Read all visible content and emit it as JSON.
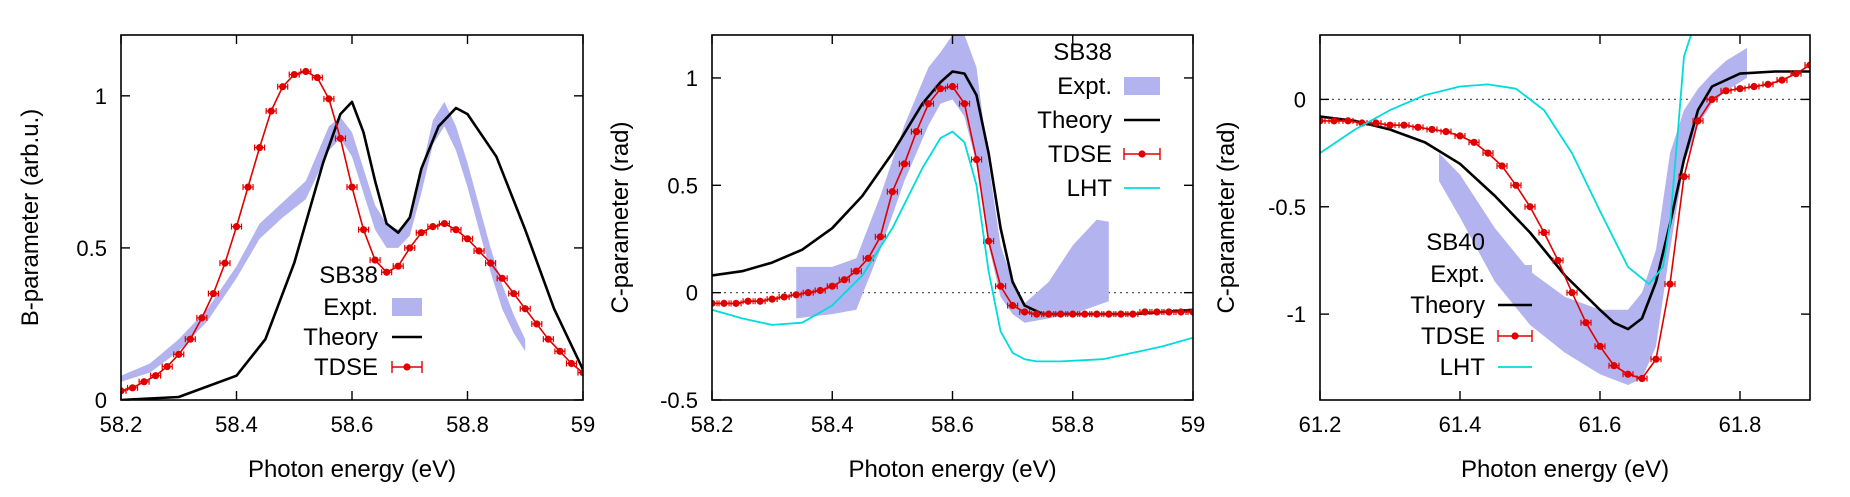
{
  "figure": {
    "panels": [
      {
        "id": "b-sb38",
        "xlabel": "Photon energy  (eV)",
        "ylabel": "B-parameter (arb.u.)",
        "xlim": [
          58.2,
          59.0
        ],
        "ylim": [
          0,
          1.2
        ],
        "xticks": [
          58.2,
          58.4,
          58.6,
          58.8,
          59.0
        ],
        "xtick_labels": [
          "58.2",
          "58.4",
          "58.6",
          "58.8",
          "59"
        ],
        "yticks": [
          0,
          0.5,
          1
        ],
        "ytick_labels": [
          "0",
          "0.5",
          "1"
        ],
        "zero_line": false,
        "legend": {
          "title": "SB38",
          "placement": "center",
          "entries": [
            "Expt.",
            "Theory",
            "TDSE"
          ]
        }
      },
      {
        "id": "c-sb38",
        "xlabel": "Photon energy  (eV)",
        "ylabel": "C-parameter (rad)",
        "xlim": [
          58.2,
          59.0
        ],
        "ylim": [
          -0.5,
          1.2
        ],
        "xticks": [
          58.2,
          58.4,
          58.6,
          58.8,
          59.0
        ],
        "xtick_labels": [
          "58.2",
          "58.4",
          "58.6",
          "58.8",
          "59"
        ],
        "yticks": [
          -0.5,
          0,
          0.5,
          1
        ],
        "ytick_labels": [
          "-0.5",
          "0",
          "0.5",
          "1"
        ],
        "zero_line": true,
        "legend": {
          "title": "SB38",
          "placement": "top-right",
          "entries": [
            "Expt.",
            "Theory",
            "TDSE",
            "LHT"
          ]
        }
      },
      {
        "id": "c-sb40",
        "xlabel": "Photon energy  (eV)",
        "ylabel": "C-parameter (rad)",
        "xlim": [
          61.2,
          61.9
        ],
        "ylim": [
          -1.4,
          0.3
        ],
        "xticks": [
          61.2,
          61.4,
          61.6,
          61.8
        ],
        "xtick_labels": [
          "61.2",
          "61.4",
          "61.6",
          "61.8"
        ],
        "yticks": [
          -1,
          -0.5,
          0
        ],
        "ytick_labels": [
          "-1",
          "-0.5",
          "0"
        ],
        "zero_line": true,
        "legend": {
          "title": "SB40",
          "placement": "bottom-left",
          "entries": [
            "Expt.",
            "Theory",
            "TDSE",
            "LHT"
          ]
        }
      }
    ]
  },
  "chart_data": [
    {
      "type": "line",
      "xlabel": "Photon energy  (eV)",
      "ylabel": "B-parameter (arb.u.)",
      "xlim": [
        58.2,
        59.0
      ],
      "ylim": [
        0,
        1.2
      ],
      "grid": false,
      "legend_placement": "center",
      "series": [
        {
          "name": "Expt.",
          "kind": "band",
          "color": "#b3b3f0",
          "x": [
            58.2,
            58.25,
            58.3,
            58.35,
            58.4,
            58.44,
            58.48,
            58.52,
            58.56,
            58.58,
            58.6,
            58.62,
            58.64,
            58.66,
            58.68,
            58.7,
            58.72,
            58.74,
            58.76,
            58.78,
            58.8,
            58.82,
            58.84,
            58.86,
            58.88,
            58.9
          ],
          "upper": [
            0.08,
            0.12,
            0.2,
            0.3,
            0.44,
            0.58,
            0.65,
            0.72,
            0.9,
            0.93,
            0.88,
            0.76,
            0.64,
            0.58,
            0.56,
            0.6,
            0.75,
            0.92,
            0.98,
            0.9,
            0.78,
            0.64,
            0.5,
            0.38,
            0.28,
            0.2
          ],
          "lower": [
            0.06,
            0.09,
            0.16,
            0.26,
            0.4,
            0.53,
            0.6,
            0.66,
            0.82,
            0.86,
            0.8,
            0.68,
            0.56,
            0.5,
            0.5,
            0.54,
            0.68,
            0.84,
            0.9,
            0.82,
            0.7,
            0.56,
            0.42,
            0.3,
            0.22,
            0.16
          ]
        },
        {
          "name": "Theory",
          "kind": "line",
          "color": "#000000",
          "x": [
            58.2,
            58.3,
            58.4,
            58.45,
            58.5,
            58.55,
            58.58,
            58.6,
            58.62,
            58.64,
            58.66,
            58.68,
            58.7,
            58.72,
            58.75,
            58.78,
            58.8,
            58.85,
            58.9,
            58.95,
            59.0
          ],
          "y": [
            0.0,
            0.01,
            0.08,
            0.2,
            0.45,
            0.78,
            0.94,
            0.98,
            0.88,
            0.72,
            0.58,
            0.55,
            0.6,
            0.76,
            0.9,
            0.96,
            0.94,
            0.8,
            0.56,
            0.3,
            0.1
          ]
        },
        {
          "name": "TDSE",
          "kind": "points-line",
          "color": "#e00000",
          "x": [
            58.2,
            58.22,
            58.24,
            58.26,
            58.28,
            58.3,
            58.32,
            58.34,
            58.36,
            58.38,
            58.4,
            58.42,
            58.44,
            58.46,
            58.48,
            58.5,
            58.52,
            58.54,
            58.56,
            58.58,
            58.6,
            58.62,
            58.64,
            58.66,
            58.68,
            58.7,
            58.72,
            58.74,
            58.76,
            58.78,
            58.8,
            58.82,
            58.84,
            58.86,
            58.88,
            58.9,
            58.92,
            58.94,
            58.96,
            58.98,
            59.0
          ],
          "y": [
            0.03,
            0.04,
            0.06,
            0.08,
            0.11,
            0.15,
            0.2,
            0.27,
            0.35,
            0.45,
            0.57,
            0.7,
            0.83,
            0.95,
            1.03,
            1.07,
            1.08,
            1.06,
            0.99,
            0.86,
            0.7,
            0.56,
            0.46,
            0.42,
            0.44,
            0.5,
            0.55,
            0.57,
            0.58,
            0.56,
            0.53,
            0.49,
            0.45,
            0.4,
            0.35,
            0.3,
            0.25,
            0.2,
            0.16,
            0.12,
            0.09
          ]
        }
      ]
    },
    {
      "type": "line",
      "xlabel": "Photon energy  (eV)",
      "ylabel": "C-parameter (rad)",
      "xlim": [
        58.2,
        59.0
      ],
      "ylim": [
        -0.5,
        1.2
      ],
      "grid": false,
      "legend_placement": "top-right",
      "series": [
        {
          "name": "Expt.",
          "kind": "band",
          "color": "#b3b3f0",
          "x": [
            58.34,
            58.4,
            58.44,
            58.48,
            58.52,
            58.56,
            58.58,
            58.6,
            58.62,
            58.64,
            58.66,
            58.68,
            58.7,
            58.72,
            58.76,
            58.8,
            58.84,
            58.86
          ],
          "upper": [
            0.12,
            0.12,
            0.16,
            0.45,
            0.78,
            1.05,
            1.12,
            1.2,
            1.2,
            1.05,
            0.6,
            0.22,
            0.05,
            -0.05,
            0.05,
            0.22,
            0.34,
            0.33
          ],
          "lower": [
            -0.12,
            -0.1,
            -0.08,
            0.2,
            0.52,
            0.78,
            0.88,
            0.9,
            0.82,
            0.6,
            0.22,
            -0.02,
            -0.1,
            -0.14,
            -0.12,
            -0.1,
            -0.06,
            -0.04
          ]
        },
        {
          "name": "Theory",
          "kind": "line",
          "color": "#000000",
          "x": [
            58.2,
            58.25,
            58.3,
            58.35,
            58.4,
            58.45,
            58.5,
            58.55,
            58.58,
            58.6,
            58.62,
            58.64,
            58.66,
            58.68,
            58.7,
            58.72,
            58.75,
            58.8,
            58.85,
            58.9,
            58.95,
            59.0
          ],
          "y": [
            0.08,
            0.1,
            0.14,
            0.2,
            0.3,
            0.45,
            0.65,
            0.88,
            0.98,
            1.03,
            1.02,
            0.92,
            0.65,
            0.3,
            0.05,
            -0.06,
            -0.1,
            -0.1,
            -0.1,
            -0.1,
            -0.09,
            -0.08
          ]
        },
        {
          "name": "TDSE",
          "kind": "points-line",
          "color": "#e00000",
          "x": [
            58.2,
            58.22,
            58.24,
            58.26,
            58.28,
            58.3,
            58.32,
            58.34,
            58.36,
            58.38,
            58.4,
            58.42,
            58.44,
            58.46,
            58.48,
            58.5,
            58.52,
            58.54,
            58.56,
            58.58,
            58.6,
            58.62,
            58.64,
            58.66,
            58.68,
            58.7,
            58.72,
            58.74,
            58.76,
            58.78,
            58.8,
            58.82,
            58.84,
            58.86,
            58.88,
            58.9,
            58.92,
            58.94,
            58.96,
            58.98,
            59.0
          ],
          "y": [
            -0.05,
            -0.05,
            -0.05,
            -0.04,
            -0.04,
            -0.03,
            -0.02,
            -0.01,
            0.0,
            0.01,
            0.03,
            0.06,
            0.1,
            0.16,
            0.26,
            0.47,
            0.6,
            0.75,
            0.88,
            0.95,
            0.96,
            0.88,
            0.62,
            0.24,
            0.03,
            -0.06,
            -0.09,
            -0.1,
            -0.1,
            -0.1,
            -0.1,
            -0.1,
            -0.1,
            -0.1,
            -0.1,
            -0.1,
            -0.09,
            -0.09,
            -0.09,
            -0.09,
            -0.09
          ]
        },
        {
          "name": "LHT",
          "kind": "line",
          "color": "#00dcdc",
          "x": [
            58.2,
            58.25,
            58.3,
            58.35,
            58.4,
            58.45,
            58.5,
            58.55,
            58.58,
            58.6,
            58.62,
            58.64,
            58.66,
            58.68,
            58.7,
            58.72,
            58.74,
            58.78,
            58.85,
            58.9,
            58.95,
            59.0
          ],
          "y": [
            -0.08,
            -0.12,
            -0.15,
            -0.14,
            -0.06,
            0.08,
            0.3,
            0.58,
            0.72,
            0.75,
            0.7,
            0.5,
            0.1,
            -0.18,
            -0.28,
            -0.31,
            -0.32,
            -0.32,
            -0.31,
            -0.28,
            -0.25,
            -0.21
          ]
        }
      ]
    },
    {
      "type": "line",
      "xlabel": "Photon energy  (eV)",
      "ylabel": "C-parameter (rad)",
      "xlim": [
        61.2,
        61.9
      ],
      "ylim": [
        -1.4,
        0.3
      ],
      "grid": false,
      "legend_placement": "bottom-left",
      "series": [
        {
          "name": "Expt.",
          "kind": "band",
          "color": "#b3b3f0",
          "x": [
            61.37,
            61.4,
            61.45,
            61.5,
            61.55,
            61.6,
            61.64,
            61.66,
            61.68,
            61.7,
            61.72,
            61.74,
            61.76,
            61.78,
            61.8,
            61.81
          ],
          "upper": [
            -0.25,
            -0.35,
            -0.6,
            -0.8,
            -0.92,
            -0.98,
            -0.98,
            -0.9,
            -0.7,
            -0.25,
            -0.05,
            0.05,
            0.12,
            0.18,
            0.22,
            0.24
          ],
          "lower": [
            -0.38,
            -0.55,
            -0.85,
            -1.05,
            -1.18,
            -1.28,
            -1.33,
            -1.3,
            -1.15,
            -0.7,
            -0.3,
            -0.12,
            -0.02,
            0.04,
            0.08,
            0.1
          ]
        },
        {
          "name": "Theory",
          "kind": "line",
          "color": "#000000",
          "x": [
            61.2,
            61.25,
            61.3,
            61.35,
            61.4,
            61.45,
            61.5,
            61.55,
            61.6,
            61.62,
            61.64,
            61.66,
            61.68,
            61.7,
            61.72,
            61.74,
            61.76,
            61.8,
            61.85,
            61.9
          ],
          "y": [
            -0.08,
            -0.1,
            -0.14,
            -0.2,
            -0.3,
            -0.45,
            -0.62,
            -0.82,
            -0.98,
            -1.04,
            -1.07,
            -1.02,
            -0.85,
            -0.58,
            -0.28,
            -0.05,
            0.06,
            0.12,
            0.13,
            0.13
          ]
        },
        {
          "name": "TDSE",
          "kind": "points-line",
          "color": "#e00000",
          "x": [
            61.2,
            61.22,
            61.24,
            61.26,
            61.28,
            61.3,
            61.32,
            61.34,
            61.36,
            61.38,
            61.4,
            61.42,
            61.44,
            61.46,
            61.48,
            61.5,
            61.52,
            61.54,
            61.56,
            61.58,
            61.6,
            61.62,
            61.64,
            61.66,
            61.68,
            61.7,
            61.72,
            61.74,
            61.76,
            61.78,
            61.8,
            61.82,
            61.84,
            61.86,
            61.88,
            61.9
          ],
          "y": [
            -0.1,
            -0.1,
            -0.1,
            -0.11,
            -0.11,
            -0.12,
            -0.12,
            -0.13,
            -0.14,
            -0.15,
            -0.17,
            -0.2,
            -0.25,
            -0.31,
            -0.4,
            -0.5,
            -0.62,
            -0.75,
            -0.9,
            -1.04,
            -1.15,
            -1.24,
            -1.28,
            -1.3,
            -1.21,
            -0.86,
            -0.36,
            -0.1,
            0.0,
            0.04,
            0.05,
            0.06,
            0.07,
            0.09,
            0.12,
            0.16
          ]
        },
        {
          "name": "LHT",
          "kind": "line",
          "color": "#00dcdc",
          "x": [
            61.2,
            61.25,
            61.3,
            61.35,
            61.4,
            61.44,
            61.48,
            61.52,
            61.56,
            61.6,
            61.64,
            61.67,
            61.69,
            61.7,
            61.71,
            61.72,
            61.73
          ],
          "y": [
            -0.25,
            -0.14,
            -0.05,
            0.02,
            0.06,
            0.07,
            0.05,
            -0.05,
            -0.25,
            -0.52,
            -0.78,
            -0.86,
            -0.78,
            -0.58,
            -0.2,
            0.2,
            0.3
          ]
        }
      ]
    }
  ]
}
